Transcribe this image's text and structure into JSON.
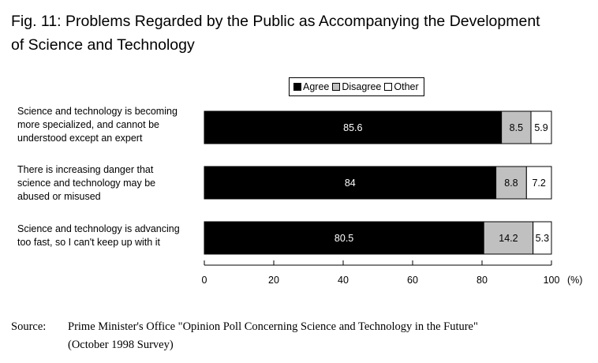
{
  "title_line1": "Fig. 11: Problems Regarded by the Public as Accompanying the Development",
  "title_line2": "of Science and Technology",
  "source_label": "Source:",
  "source_line1": "Prime Minister's Office \"Opinion Poll Concerning Science and Technology in the Future\"",
  "source_line2": "(October 1998 Survey)",
  "colors": {
    "agree": "#000000",
    "disagree": "#c0c0c0",
    "other": "#ffffff"
  },
  "chart_data": {
    "type": "bar",
    "orientation": "horizontal",
    "stacked": true,
    "categories": [
      "Science and technology is becoming more specialized, and cannot be understood except an expert",
      "There is increasing danger that science and technology may be abused or misused",
      "Science and technology is advancing too fast, so I can't keep up with it"
    ],
    "category_lines": [
      [
        "Science and technology is becoming",
        "more specialized, and cannot be",
        "understood except an expert"
      ],
      [
        "There is increasing danger that",
        "science and technology may be",
        "abused or misused"
      ],
      [
        "Science and technology is advancing",
        "too fast, so I can't keep up with it"
      ]
    ],
    "series": [
      {
        "name": "Agree",
        "values": [
          85.6,
          84,
          80.5
        ]
      },
      {
        "name": "Disagree",
        "values": [
          8.5,
          8.8,
          14.2
        ]
      },
      {
        "name": "Other",
        "values": [
          5.9,
          7.2,
          5.3
        ]
      }
    ],
    "x_ticks": [
      0,
      20,
      40,
      60,
      80,
      100
    ],
    "x_unit": "(%)",
    "xlim": [
      0,
      100
    ],
    "legend": "top",
    "grid": false
  }
}
